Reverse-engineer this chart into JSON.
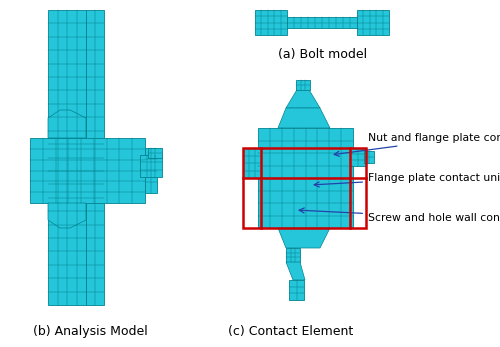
{
  "background_color": "#ffffff",
  "fig_width": 5.0,
  "fig_height": 3.47,
  "dpi": 100,
  "label_a": "(a) Bolt model",
  "label_b": "(b) Analysis Model",
  "label_c": "(c) Contact Element",
  "annotation_1": "Nut and flange plate contact unit",
  "annotation_2": "Flange plate contact unit",
  "annotation_3": "Screw and hole wall contact unit",
  "text_color": "#000000",
  "arrow_color": "#2244aa",
  "red_color": "#cc0000",
  "cyan": "#26c6da",
  "dark_cyan": "#00838f",
  "label_fontsize": 9,
  "annot_fontsize": 7.8
}
